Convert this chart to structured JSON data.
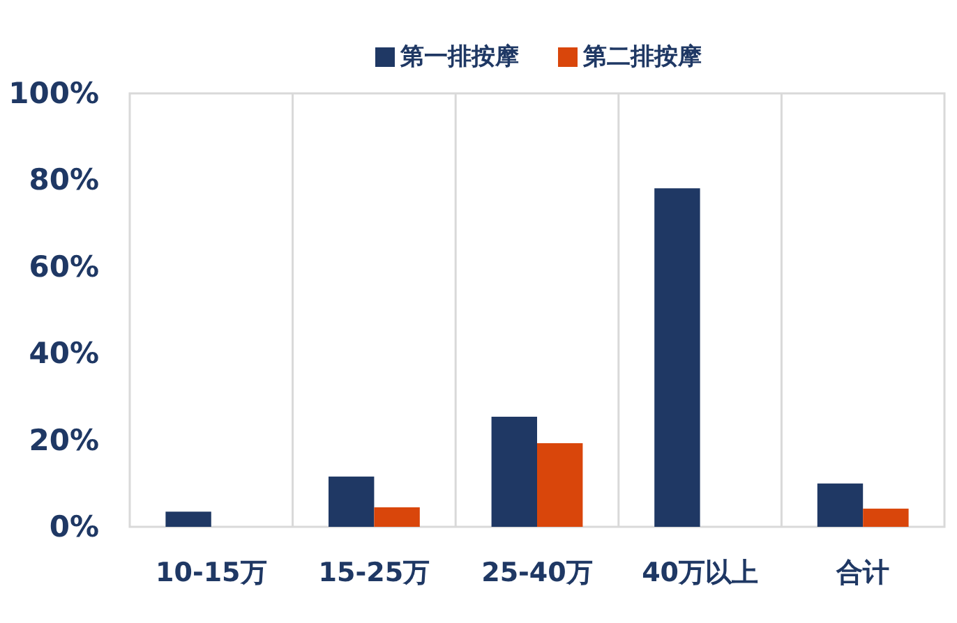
{
  "chart_data": {
    "type": "bar",
    "categories": [
      "10-15万",
      "15-25万",
      "25-40万",
      "40万以上",
      "合计"
    ],
    "series": [
      {
        "name": "第一排按摩",
        "color": "#1f3864",
        "values": [
          3.5,
          11.6,
          25.4,
          78.1,
          10.0
        ]
      },
      {
        "name": "第二排按摩",
        "color": "#d9460b",
        "values": [
          null,
          4.5,
          19.3,
          null,
          4.2
        ]
      }
    ],
    "ylim": [
      0,
      100
    ],
    "yticks": [
      {
        "value": 0,
        "label": "0%"
      },
      {
        "value": 20,
        "label": "20%"
      },
      {
        "value": 40,
        "label": "40%"
      },
      {
        "value": 60,
        "label": "60%"
      },
      {
        "value": 80,
        "label": "80%"
      },
      {
        "value": 100,
        "label": "100%"
      }
    ],
    "grid": "x",
    "legend": "top"
  }
}
